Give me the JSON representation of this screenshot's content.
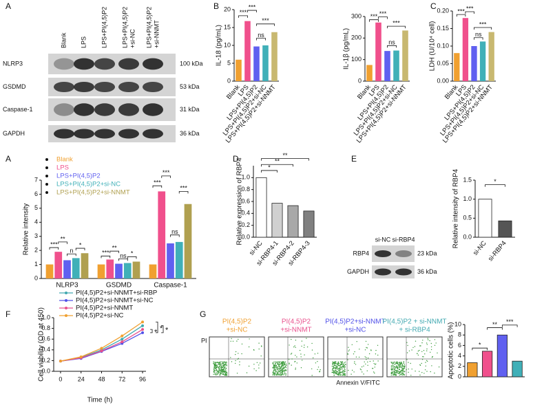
{
  "panel_labels": [
    "A",
    "B",
    "C",
    "A",
    "D",
    "E",
    "F",
    "G"
  ],
  "blot_a": {
    "lanes": [
      [
        "Blank"
      ],
      [
        "LPS"
      ],
      [
        "LPS+PI(4,5)P2"
      ],
      [
        "LPS+PI(4,5)P2",
        "+si-NC"
      ],
      [
        "LPS+PI(4,5)P2",
        "+si-NNMT"
      ]
    ],
    "rows": [
      {
        "name": "NLRP3",
        "size": "100 kDa"
      },
      {
        "name": "GSDMD",
        "size": "53 kDa"
      },
      {
        "name": "Caspase-1",
        "size": "31 kDa"
      },
      {
        "name": "GAPDH",
        "size": "36 kDa"
      }
    ]
  },
  "blot_e": {
    "lanes": [
      "si-NC",
      "si-RBP4"
    ],
    "rows": [
      {
        "name": "RBP4",
        "size": "23 kDa"
      },
      {
        "name": "GAPDH",
        "size": "36 kDa"
      }
    ]
  },
  "flow_g": {
    "titles": [
      [
        "PI(4,5)P2",
        "+si-NC"
      ],
      [
        "PI(4,5)P2",
        "+si-NNMT"
      ],
      [
        "PI(4,5)P2+si-NNMT",
        "+si-NC"
      ],
      [
        "PI(4,5)P2 + si-NNMT",
        "+ si-RBP4"
      ]
    ],
    "title_colors": [
      "#f0a030",
      "#e8508c",
      "#5050e8",
      "#40a8b0"
    ],
    "ylabel": "PI",
    "xlabel": "Annexin V/FITC"
  },
  "chart_data": [
    {
      "type": "bar",
      "ylabel": "IL-18 (pg/mL)",
      "categories": [
        "Blank",
        "LPS",
        "LPS+PI(4,5)P2",
        "LPS+PI(4,5)P2+si-NC",
        "LPS+PI(4,5)P2+si-NNMT"
      ],
      "values": [
        6,
        16.8,
        9.7,
        10,
        13.7
      ],
      "colors": [
        "#f0a030",
        "#f0508c",
        "#6060f0",
        "#40b0b8",
        "#c8b870"
      ],
      "ylim": [
        0,
        20
      ],
      "yticks": [
        0,
        5,
        10,
        15,
        20
      ],
      "annotations": [
        "***",
        "***",
        "ns",
        "***"
      ]
    },
    {
      "type": "bar",
      "ylabel": "IL-1β (pg/mL)",
      "categories": [
        "Blank",
        "LPS",
        "LPS+PI(4,5)P2",
        "LPS+PI(4,5)P2+si-NC",
        "LPS+PI(4,5)P2+si-NNMT"
      ],
      "values": [
        75,
        272,
        140,
        142,
        235
      ],
      "colors": [
        "#f0a030",
        "#f0508c",
        "#6060f0",
        "#40b0b8",
        "#c8b870"
      ],
      "ylim": [
        0,
        300
      ],
      "yticks": [
        0,
        100,
        200,
        300
      ],
      "annotations": [
        "***",
        "***",
        "ns",
        "***"
      ]
    },
    {
      "type": "bar",
      "ylabel": "LDH (U/10⁴ cell)",
      "categories": [
        "Blank",
        "LPS",
        "LPS+PI(4,5)P2",
        "LPS+PI(4,5)P2+si-NC",
        "LPS+PI(4,5)P2+si-NNMT"
      ],
      "values": [
        0.08,
        0.18,
        0.1,
        0.113,
        0.14
      ],
      "colors": [
        "#f0a030",
        "#f0508c",
        "#6060f0",
        "#40b0b8",
        "#c8b870"
      ],
      "ylim": [
        0,
        0.2
      ],
      "yticks": [
        {
          "value": 0,
          "label": "0.00"
        },
        0.05,
        {
          "value": 0.1,
          "label": "0.10"
        },
        0.15,
        {
          "value": 0.2,
          "label": "0.20"
        }
      ],
      "annotations": [
        "***",
        "***",
        "ns",
        "***"
      ]
    },
    {
      "type": "grouped_bar",
      "ylabel": "Relative intensity",
      "categories": [
        "NLRP3",
        "GSDMD",
        "Caspase-1"
      ],
      "series": [
        {
          "name": "Blank",
          "color": "#f0a030",
          "values": [
            1,
            1,
            1
          ]
        },
        {
          "name": "LPS",
          "color": "#f0508c",
          "values": [
            1.9,
            1.35,
            6.2
          ]
        },
        {
          "name": "LPS+PI(4,5)P2",
          "color": "#6060f0",
          "values": [
            1.3,
            1.05,
            2.5
          ]
        },
        {
          "name": "LPS+PI(4,5)P2+si-NC",
          "color": "#40b0b8",
          "values": [
            1.45,
            1.1,
            2.6
          ]
        },
        {
          "name": "LPS+PI(4,5)P2+si-NNMT",
          "color": "#b0a050",
          "values": [
            1.8,
            1.2,
            5.3
          ]
        }
      ],
      "ylim": [
        0,
        7
      ],
      "yticks": [
        0,
        1,
        2,
        3,
        4,
        5,
        6,
        7
      ],
      "annotations": [
        "***",
        "**",
        "n",
        "*",
        "***",
        "**",
        "ns",
        "*",
        "***",
        "***",
        "ns",
        "***"
      ]
    },
    {
      "type": "bar",
      "ylabel": "Relative expression of RBP4",
      "categories": [
        "si-NC",
        "si-RBP4-1",
        "si-RBP4-2",
        "si-RBP4-3"
      ],
      "values": [
        1.0,
        0.57,
        0.53,
        0.44
      ],
      "colors": [
        "#ffffff",
        "#d0d0d0",
        "#a8a8a8",
        "#808080"
      ],
      "ylim": [
        0,
        1.2
      ],
      "yticks": [
        {
          "value": 0,
          "label": "0.0"
        },
        0.2,
        0.4,
        0.6,
        0.8,
        {
          "value": 1,
          "label": "1.0"
        }
      ],
      "annotations": [
        "*",
        "**",
        "**"
      ]
    },
    {
      "type": "bar",
      "ylabel": "Relative intensity of RBP4",
      "categories": [
        "si-NC",
        "si-RBP4"
      ],
      "values": [
        1.0,
        0.43
      ],
      "colors": [
        "#ffffff",
        "#555555"
      ],
      "ylim": [
        0,
        1.5
      ],
      "yticks": [
        {
          "value": 0,
          "label": "0.0"
        },
        0.5,
        {
          "value": 1,
          "label": "1.0"
        },
        1.5
      ],
      "annotations": [
        "*"
      ]
    },
    {
      "type": "line",
      "xlabel": "Time (h)",
      "ylabel": "Cell viability (OD at 450)",
      "x": [
        0,
        24,
        48,
        72,
        96
      ],
      "series": [
        {
          "name": "PI(4,5)P2+si-NNMT+si-RBP",
          "color": "#40a8b0",
          "values": [
            0.19,
            0.26,
            0.4,
            0.6,
            0.85
          ]
        },
        {
          "name": "PI(4,5)P2+si-NNMT+si-NC",
          "color": "#5050e8",
          "values": [
            0.19,
            0.24,
            0.37,
            0.52,
            0.72
          ]
        },
        {
          "name": "PI(4,5)P2+si-NNMT",
          "color": "#e8508c",
          "values": [
            0.19,
            0.25,
            0.38,
            0.55,
            0.78
          ]
        },
        {
          "name": "PI(4,5)P2+si-NC",
          "color": "#f0a030",
          "values": [
            0.19,
            0.27,
            0.43,
            0.66,
            0.92
          ]
        }
      ],
      "xlim": [
        -8,
        100
      ],
      "xticks": [
        0,
        24,
        48,
        72,
        96
      ],
      "ylim": [
        0,
        1
      ],
      "yticks": [
        {
          "value": 0,
          "label": "0.0"
        },
        0.2,
        0.4,
        0.6,
        0.8,
        {
          "value": 1,
          "label": "1.0"
        }
      ],
      "annotations": [
        "*",
        "*",
        "*"
      ]
    },
    {
      "type": "bar",
      "ylabel": "Apoptotic cells (%)",
      "categories": [
        null,
        null,
        null,
        null
      ],
      "values": [
        2.7,
        4.9,
        8.0,
        3.0
      ],
      "colors": [
        "#f0a030",
        "#f0508c",
        "#6060f0",
        "#40b0b8"
      ],
      "ylim": [
        0,
        10
      ],
      "yticks": [
        0,
        2,
        4,
        6,
        8,
        10
      ],
      "annotations": [
        "*",
        "**",
        "***"
      ]
    }
  ]
}
